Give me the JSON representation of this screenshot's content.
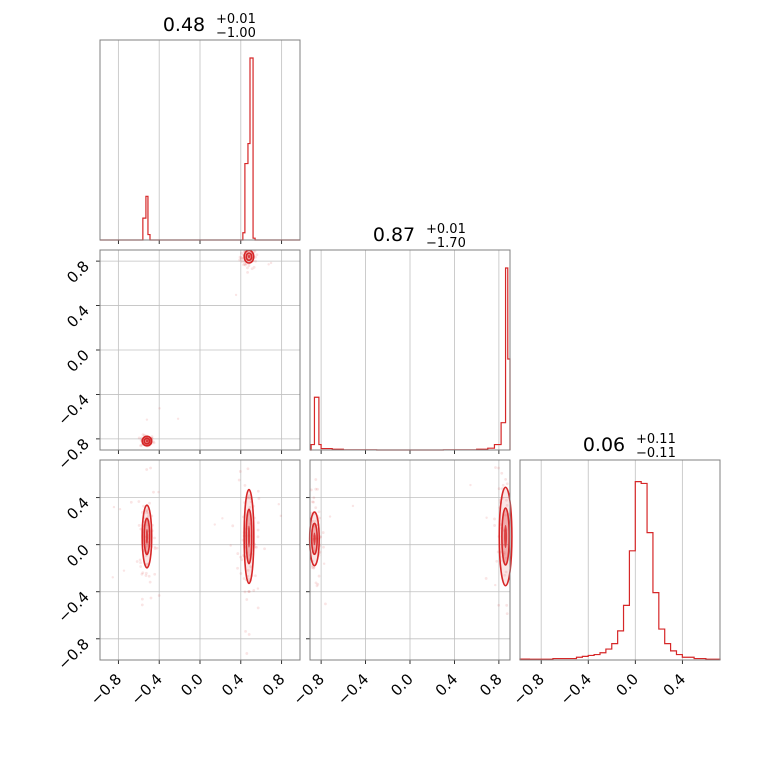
{
  "colors": {
    "accent": "#d62728",
    "grid": "#c0c0c0",
    "frame": "#808080"
  },
  "chart_data": {
    "type": "corner",
    "grid": true,
    "titles": [
      {
        "value": "0.48",
        "plus": "+0.01",
        "minus": "−1.00"
      },
      {
        "value": "0.87",
        "plus": "+0.01",
        "minus": "−1.70"
      },
      {
        "value": "0.06",
        "plus": "+0.11",
        "minus": "−0.11"
      }
    ],
    "params": [
      {
        "range": [
          -0.98,
          0.98
        ],
        "ticks": [
          -0.8,
          -0.4,
          0.0,
          0.4,
          0.8
        ],
        "tick_labels": [
          "−0.8",
          "−0.4",
          "0.0",
          "0.4",
          "0.8"
        ]
      },
      {
        "range": [
          -0.9,
          0.9
        ],
        "ticks": [
          -0.8,
          -0.4,
          0.0,
          0.4,
          0.8
        ],
        "tick_labels": [
          "−0.8",
          "−0.4",
          "0.0",
          "0.4",
          "0.8"
        ]
      },
      {
        "range": [
          -0.98,
          0.72
        ],
        "ticks": [
          -0.8,
          -0.4,
          0.0,
          0.4
        ],
        "tick_labels": [
          "−0.8",
          "−0.4",
          "0.0",
          "0.4"
        ]
      }
    ],
    "row_ticks": [
      {
        "ticks": [
          0.8,
          0.4,
          0.0,
          -0.4,
          -0.8
        ],
        "tick_labels": [
          "0.8",
          "0.4",
          "0.0",
          "−0.4",
          "−0.8"
        ]
      },
      {
        "ticks": [
          0.4,
          0.0,
          -0.4,
          -0.8
        ],
        "tick_labels": [
          "0.4",
          "0.0",
          "−0.4",
          "−0.8"
        ]
      }
    ],
    "histograms": [
      {
        "bins": [
          [
            -0.56,
            -0.53,
            0.12
          ],
          [
            -0.53,
            -0.51,
            0.24
          ],
          [
            -0.51,
            -0.49,
            0.03
          ],
          [
            0.42,
            0.44,
            0.04
          ],
          [
            0.44,
            0.47,
            0.42
          ],
          [
            0.47,
            0.49,
            0.53
          ],
          [
            0.49,
            0.52,
            1.0
          ],
          [
            0.52,
            0.54,
            0.01
          ]
        ]
      },
      {
        "bins": [
          [
            -0.89,
            -0.86,
            0.03
          ],
          [
            -0.86,
            -0.82,
            0.29
          ],
          [
            -0.82,
            -0.8,
            0.03
          ],
          [
            -0.8,
            -0.7,
            0.008
          ],
          [
            -0.7,
            -0.6,
            0.004
          ],
          [
            -0.6,
            -0.3,
            0.001
          ],
          [
            -0.3,
            0.3,
            0.0
          ],
          [
            0.3,
            0.6,
            0.001
          ],
          [
            0.6,
            0.7,
            0.004
          ],
          [
            0.7,
            0.76,
            0.01
          ],
          [
            0.76,
            0.82,
            0.03
          ],
          [
            0.82,
            0.86,
            0.15
          ],
          [
            0.86,
            0.88,
            1.0
          ],
          [
            0.88,
            0.9,
            0.5
          ]
        ]
      },
      {
        "bins": [
          [
            -0.98,
            -0.9,
            0.005
          ],
          [
            -0.9,
            -0.7,
            0.004
          ],
          [
            -0.7,
            -0.5,
            0.008
          ],
          [
            -0.5,
            -0.45,
            0.015
          ],
          [
            -0.45,
            -0.4,
            0.02
          ],
          [
            -0.4,
            -0.35,
            0.025
          ],
          [
            -0.35,
            -0.3,
            0.03
          ],
          [
            -0.3,
            -0.25,
            0.04
          ],
          [
            -0.25,
            -0.2,
            0.06
          ],
          [
            -0.2,
            -0.15,
            0.09
          ],
          [
            -0.15,
            -0.1,
            0.16
          ],
          [
            -0.1,
            -0.05,
            0.3
          ],
          [
            -0.05,
            0.0,
            0.6
          ],
          [
            0.0,
            0.05,
            0.98
          ],
          [
            0.05,
            0.1,
            0.97
          ],
          [
            0.1,
            0.15,
            0.7
          ],
          [
            0.15,
            0.2,
            0.37
          ],
          [
            0.2,
            0.25,
            0.17
          ],
          [
            0.25,
            0.3,
            0.09
          ],
          [
            0.3,
            0.35,
            0.05
          ],
          [
            0.35,
            0.4,
            0.03
          ],
          [
            0.4,
            0.5,
            0.015
          ],
          [
            0.5,
            0.6,
            0.008
          ],
          [
            0.6,
            0.72,
            0.004
          ]
        ]
      }
    ],
    "contours": [
      {
        "row": 1,
        "col": 0,
        "clusters": [
          {
            "cx": 0.48,
            "cy": 0.84,
            "sx": 0.02,
            "sy": 0.03
          },
          {
            "cx": -0.52,
            "cy": -0.82,
            "sx": 0.015,
            "sy": 0.015
          }
        ]
      },
      {
        "row": 2,
        "col": 0,
        "clusters": [
          {
            "cx": -0.52,
            "cy": 0.07,
            "sx": 0.02,
            "sy": 0.14
          },
          {
            "cx": 0.48,
            "cy": 0.07,
            "sx": 0.025,
            "sy": 0.21
          }
        ]
      },
      {
        "row": 2,
        "col": 1,
        "clusters": [
          {
            "cx": -0.86,
            "cy": 0.05,
            "sx": 0.02,
            "sy": 0.12
          },
          {
            "cx": 0.86,
            "cy": 0.07,
            "sx": 0.03,
            "sy": 0.22
          }
        ]
      }
    ]
  }
}
